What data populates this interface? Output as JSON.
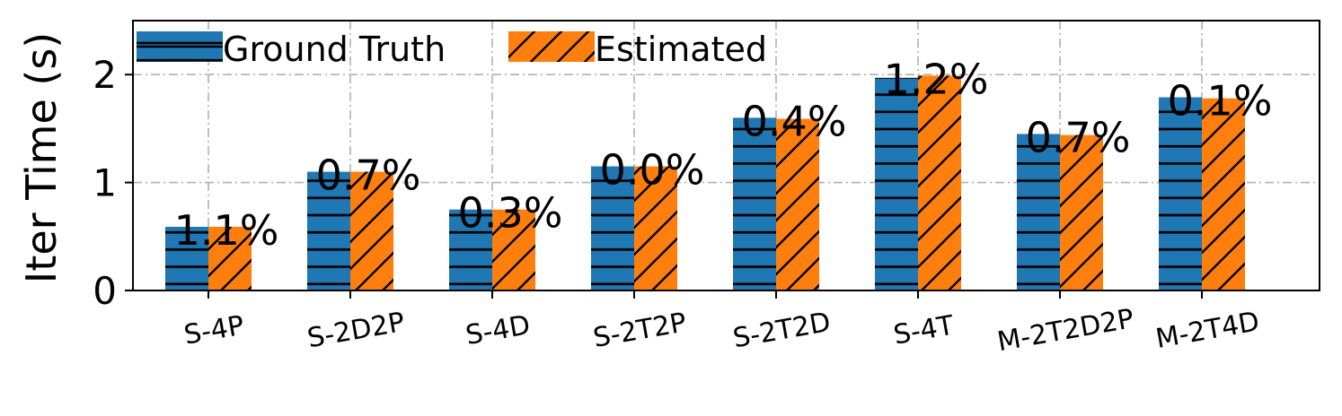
{
  "chart_data": {
    "type": "bar",
    "title": "",
    "xlabel": "",
    "ylabel": "Iter Time (s)",
    "ylim": [
      0,
      2.5
    ],
    "yticks": [
      0,
      1,
      2
    ],
    "grid": true,
    "legend_position": "top-left",
    "categories": [
      "S-4P",
      "S-2D2P",
      "S-4D",
      "S-2T2P",
      "S-2T2D",
      "S-4T",
      "M-2T2D2P",
      "M-2T4D"
    ],
    "series": [
      {
        "name": "Ground Truth",
        "color": "#1f77b4",
        "hatch": "horizontal",
        "values": [
          0.59,
          1.1,
          0.75,
          1.15,
          1.6,
          1.97,
          1.45,
          1.79
        ]
      },
      {
        "name": "Estimated",
        "color": "#ff7f0e",
        "hatch": "diagonal",
        "values": [
          0.59,
          1.1,
          0.75,
          1.15,
          1.59,
          1.99,
          1.44,
          1.78
        ]
      }
    ],
    "data_labels": [
      "1.1%",
      "0.7%",
      "0.3%",
      "0.0%",
      "0.4%",
      "1.2%",
      "0.7%",
      "0.1%"
    ]
  }
}
